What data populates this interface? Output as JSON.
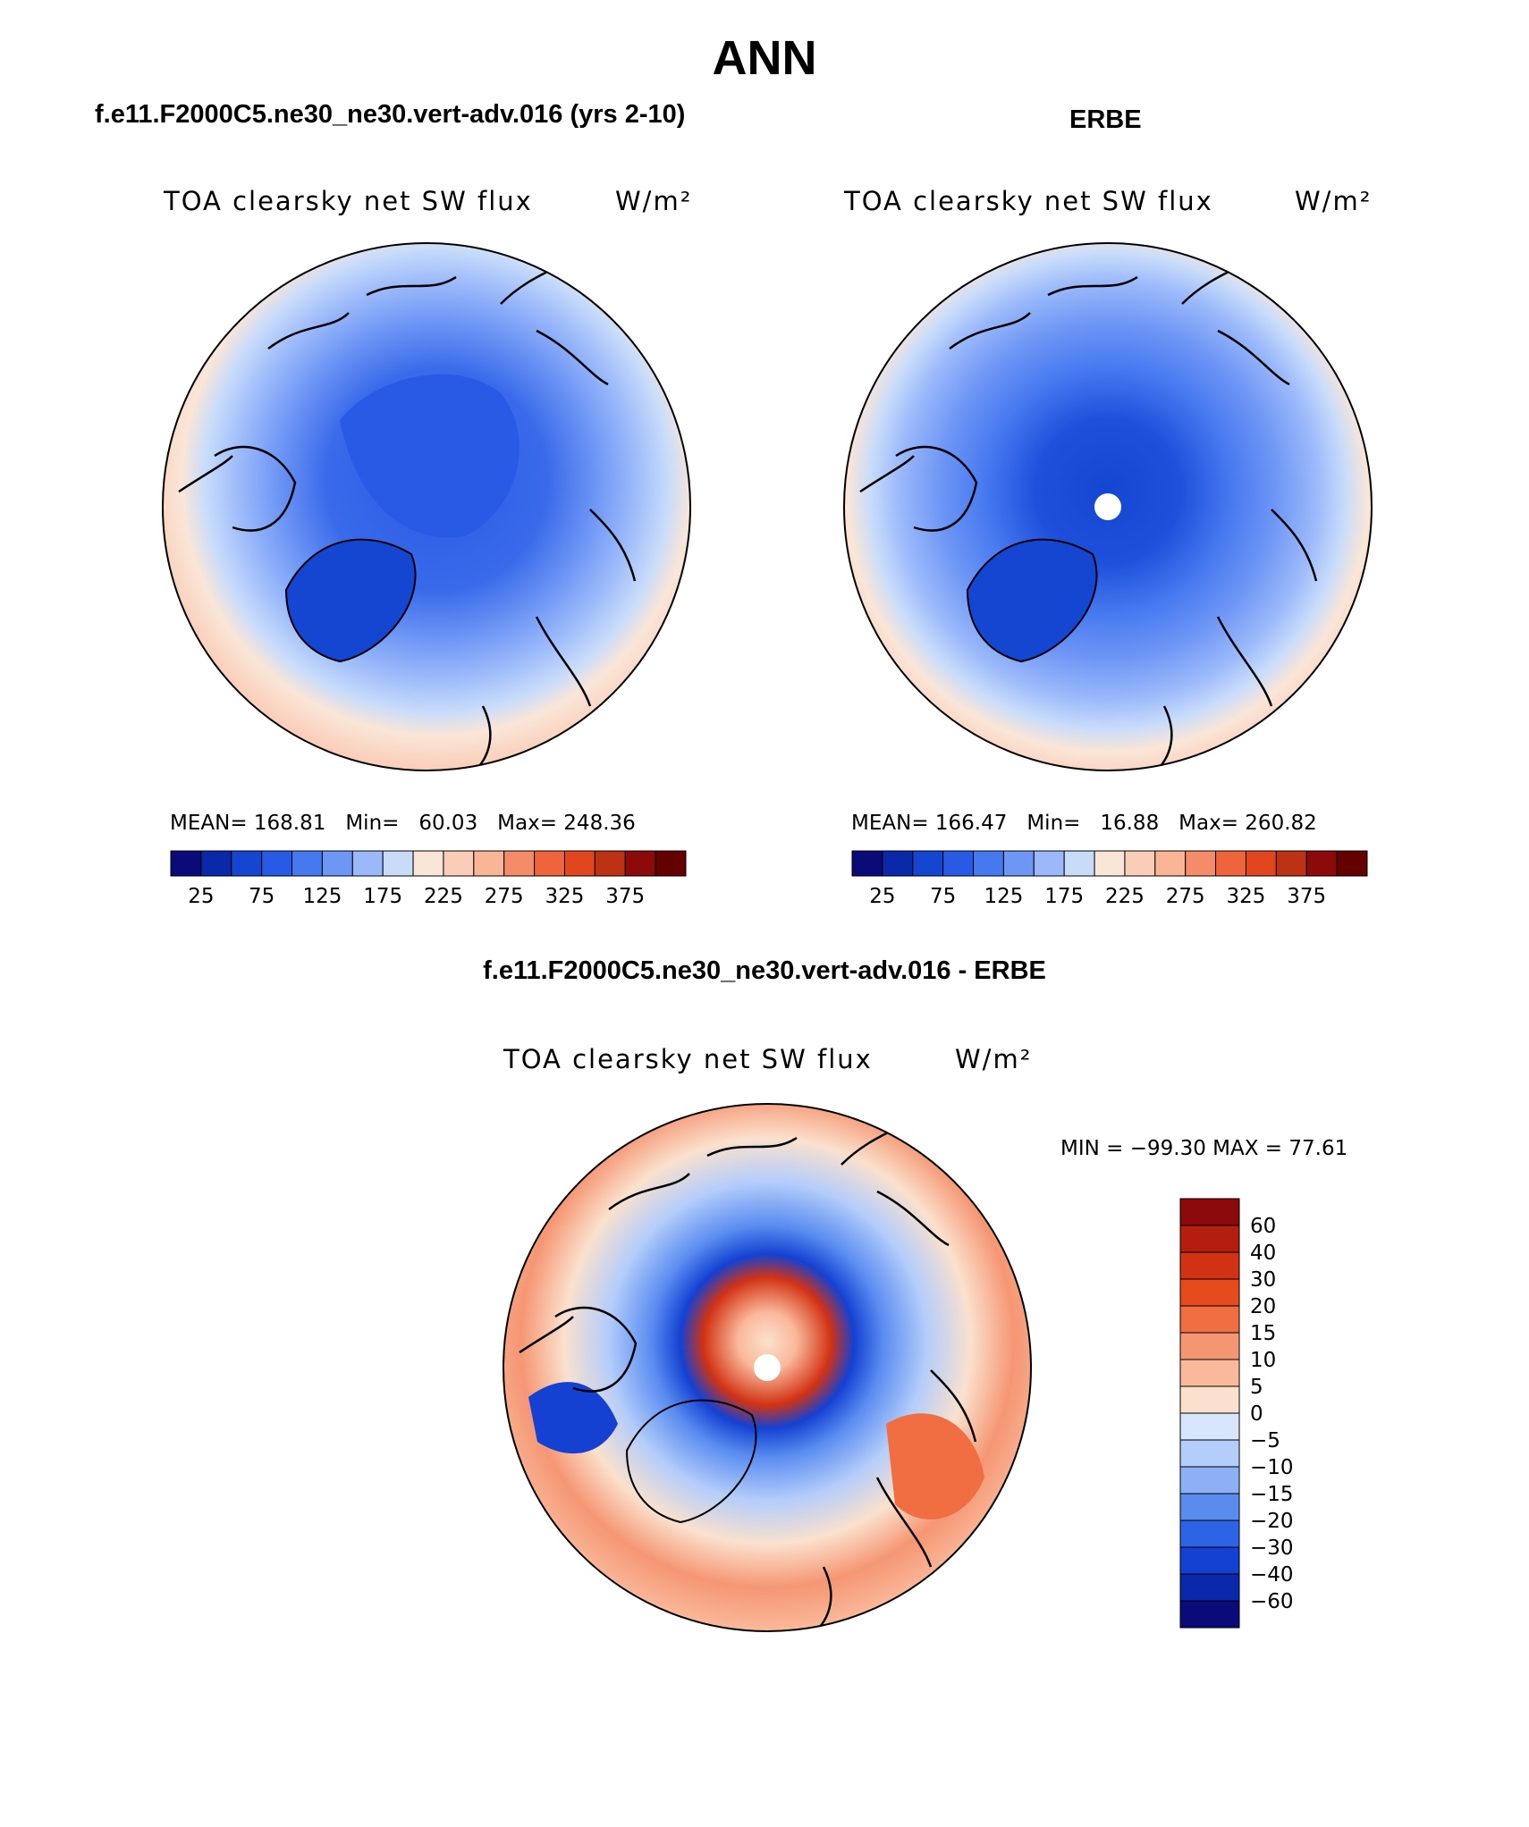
{
  "title": "ANN",
  "panels": [
    {
      "id": "model",
      "heading": "f.e11.F2000C5.ne30_ne30.vert-adv.016 (yrs 2-10)",
      "variable": "TOA clearsky net SW flux",
      "units": "W/m²",
      "stats": {
        "mean_label": "MEAN=",
        "mean": "168.81",
        "min_label": "Min=",
        "min": "60.03",
        "max_label": "Max=",
        "max": "248.36"
      }
    },
    {
      "id": "obs",
      "heading": "ERBE",
      "variable": "TOA clearsky net SW flux",
      "units": "W/m²",
      "stats": {
        "mean_label": "MEAN=",
        "mean": "166.47",
        "min_label": "Min=",
        "min": "16.88",
        "max_label": "Max=",
        "max": "260.82"
      }
    }
  ],
  "abs_colorbar": {
    "colors": [
      "#0a0a78",
      "#0a28aa",
      "#1446d2",
      "#285ae6",
      "#4678f0",
      "#6e96f5",
      "#9bb9fa",
      "#c8dcfa",
      "#fae6d7",
      "#facdb9",
      "#fab496",
      "#f58c69",
      "#f0643c",
      "#e1461e",
      "#be3214",
      "#8c0a0a",
      "#640000"
    ],
    "labels": [
      "25",
      "75",
      "125",
      "175",
      "225",
      "275",
      "325",
      "375"
    ]
  },
  "diff_panel": {
    "heading": "f.e11.F2000C5.ne30_ne30.vert-adv.016 - ERBE",
    "variable": "TOA clearsky net SW flux",
    "units": "W/m²",
    "minmax": "MIN = −99.30 MAX =  77.61",
    "colorbar": {
      "colors": [
        "#8c0a0a",
        "#b41e0f",
        "#d23214",
        "#e64b1e",
        "#f06e41",
        "#f59673",
        "#fab99b",
        "#fae1cd",
        "#d7e6fa",
        "#b4cdfa",
        "#8caff5",
        "#5a8cf0",
        "#2d64e6",
        "#1441d2",
        "#0a28aa",
        "#0a0a78"
      ],
      "labels": [
        "60",
        "40",
        "30",
        "20",
        "15",
        "10",
        "5",
        "0",
        "−5",
        "−10",
        "−15",
        "−20",
        "−30",
        "−40",
        "−60"
      ]
    }
  }
}
